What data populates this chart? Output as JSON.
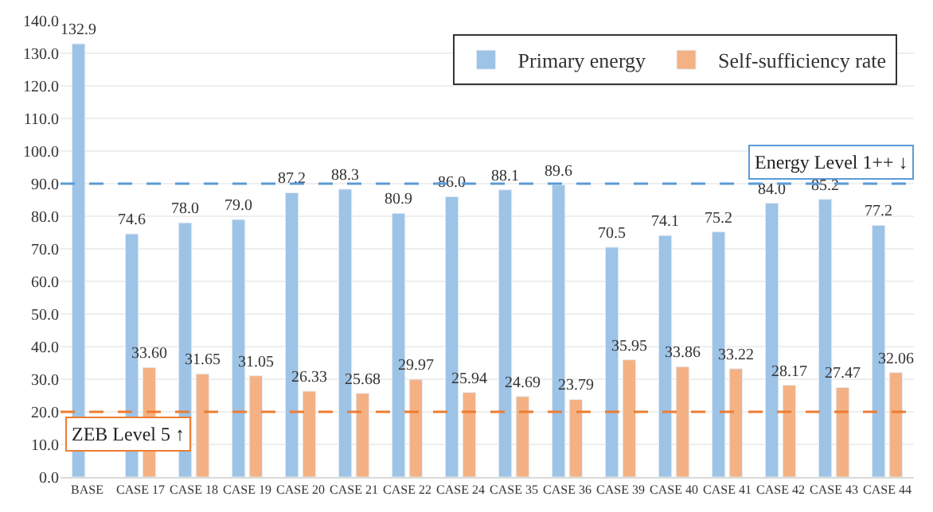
{
  "chart_data": {
    "type": "bar",
    "categories": [
      "BASE",
      "CASE 17",
      "CASE 18",
      "CASE 19",
      "CASE 20",
      "CASE 21",
      "CASE 22",
      "CASE 24",
      "CASE 35",
      "CASE 36",
      "CASE 39",
      "CASE 40",
      "CASE 41",
      "CASE 42",
      "CASE 43",
      "CASE 44"
    ],
    "series": [
      {
        "name": "Primary energy",
        "color": "#9dc3e6",
        "values": [
          132.9,
          74.6,
          78.0,
          79.0,
          87.2,
          88.3,
          80.9,
          86.0,
          88.1,
          89.6,
          70.5,
          74.1,
          75.2,
          84.0,
          85.2,
          77.2
        ],
        "value_labels": [
          "132.9",
          "74.6",
          "78.0",
          "79.0",
          "87.2",
          "88.3",
          "80.9",
          "86.0",
          "88.1",
          "89.6",
          "70.5",
          "74.1",
          "75.2",
          "84.0",
          "85.2",
          "77.2"
        ]
      },
      {
        "name": "Self-sufficiency rate",
        "color": "#f4b183",
        "values": [
          null,
          33.6,
          31.65,
          31.05,
          26.33,
          25.68,
          29.97,
          25.94,
          24.69,
          23.79,
          35.95,
          33.86,
          33.22,
          28.17,
          27.47,
          32.06
        ],
        "value_labels": [
          null,
          "33.60",
          "31.65",
          "31.05",
          "26.33",
          "25.68",
          "29.97",
          "25.94",
          "24.69",
          "23.79",
          "35.95",
          "33.86",
          "33.22",
          "28.17",
          "27.47",
          "32.06"
        ]
      }
    ],
    "ylim": [
      0,
      140
    ],
    "yticks": [
      {
        "value": 0,
        "label": "0.0"
      },
      {
        "value": 10,
        "label": "10.0"
      },
      {
        "value": 20,
        "label": "20.0"
      },
      {
        "value": 30,
        "label": "30.0"
      },
      {
        "value": 40,
        "label": "40.0"
      },
      {
        "value": 50,
        "label": "50.0"
      },
      {
        "value": 60,
        "label": "60.0"
      },
      {
        "value": 70,
        "label": "70.0"
      },
      {
        "value": 80,
        "label": "80.0"
      },
      {
        "value": 90,
        "label": "90.0"
      },
      {
        "value": 100,
        "label": "100.0"
      },
      {
        "value": 110,
        "label": "110.0"
      },
      {
        "value": 120,
        "label": "120.0"
      },
      {
        "value": 130,
        "label": "130.0"
      },
      {
        "value": 140,
        "label": "140.0"
      }
    ],
    "ref_lines": [
      {
        "axis": "y",
        "value": 90,
        "label": "Energy Level 1++ ↓",
        "color": "#5b9bd5",
        "line_style": "dashed"
      },
      {
        "axis": "y",
        "value": 20,
        "label": "ZEB Level 5 ↑",
        "color": "#ed7d31",
        "line_style": "dashed"
      }
    ],
    "grid": "y",
    "legend": "top right"
  }
}
